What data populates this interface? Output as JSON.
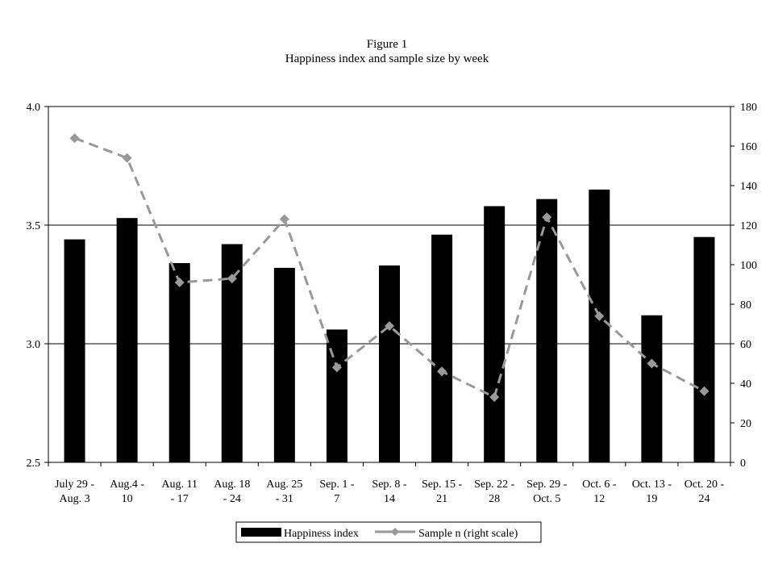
{
  "chart_data": {
    "type": "bar",
    "title": "Figure 1",
    "subtitle": "Happiness index and sample size by week",
    "categories": [
      [
        "July 29 -",
        "Aug. 3"
      ],
      [
        "Aug.4 -",
        "10"
      ],
      [
        "Aug. 11",
        "- 17"
      ],
      [
        "Aug. 18",
        "- 24"
      ],
      [
        "Aug. 25",
        "- 31"
      ],
      [
        "Sep. 1 -",
        "7"
      ],
      [
        "Sep. 8 -",
        "14"
      ],
      [
        "Sep. 15 -",
        "21"
      ],
      [
        "Sep. 22 -",
        "28"
      ],
      [
        "Sep. 29 -",
        "Oct. 5"
      ],
      [
        "Oct. 6 -",
        "12"
      ],
      [
        "Oct. 13 -",
        "19"
      ],
      [
        "Oct. 20 -",
        "24"
      ]
    ],
    "series": [
      {
        "name": "Happiness index",
        "type": "bar",
        "axis": "left",
        "color": "#000000",
        "values": [
          3.44,
          3.53,
          3.34,
          3.42,
          3.32,
          3.06,
          3.33,
          3.46,
          3.58,
          3.61,
          3.65,
          3.12,
          3.45
        ]
      },
      {
        "name": "Sample n (right scale)",
        "type": "line",
        "axis": "right",
        "color": "#999999",
        "line_style": "dashed",
        "marker": "diamond",
        "values": [
          164,
          154,
          91,
          93,
          123,
          48,
          69,
          46,
          33,
          124,
          74,
          50,
          36
        ]
      }
    ],
    "y_left": {
      "min": 2.5,
      "max": 4.0,
      "ticks": [
        "2.5",
        "3.0",
        "3.5",
        "4.0"
      ],
      "tick_values": [
        2.5,
        3.0,
        3.5,
        4.0
      ]
    },
    "y_right": {
      "min": 0,
      "max": 180,
      "ticks": [
        "0",
        "20",
        "40",
        "60",
        "80",
        "100",
        "120",
        "140",
        "160",
        "180"
      ],
      "tick_values": [
        0,
        20,
        40,
        60,
        80,
        100,
        120,
        140,
        160,
        180
      ]
    },
    "gridlines": [
      3.0,
      3.5,
      4.0
    ],
    "legend_position": "bottom"
  }
}
